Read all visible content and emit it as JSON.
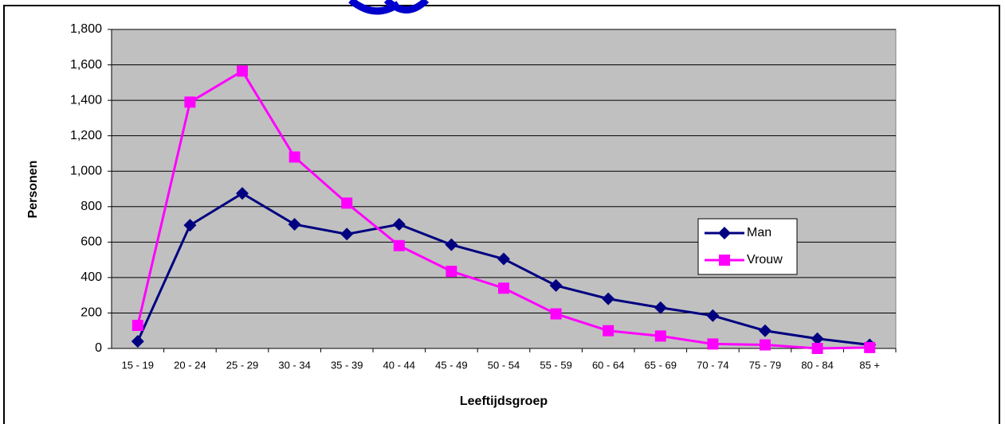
{
  "chart_data": {
    "type": "line",
    "x_label": "Leeftijdsgroep",
    "y_label": "Personen",
    "categories": [
      "15 - 19",
      "20 - 24",
      "25 - 29",
      "30 - 34",
      "35 - 39",
      "40 - 44",
      "45 - 49",
      "50 - 54",
      "55 - 59",
      "60 - 64",
      "65 - 69",
      "70 - 74",
      "75 - 79",
      "80 - 84",
      "85 +"
    ],
    "series": [
      {
        "name": "Man",
        "color": "#000080",
        "marker": "diamond",
        "values": [
          40,
          695,
          875,
          700,
          645,
          700,
          585,
          505,
          355,
          280,
          230,
          185,
          100,
          55,
          20
        ]
      },
      {
        "name": "Vrouw",
        "color": "#ff00ff",
        "marker": "square",
        "values": [
          130,
          1390,
          1565,
          1080,
          820,
          580,
          435,
          340,
          195,
          100,
          70,
          25,
          20,
          0,
          5
        ]
      }
    ],
    "ylim": [
      0,
      1800
    ],
    "yticks": [
      0,
      200,
      400,
      600,
      800,
      {
        "value": 1000,
        "label": "1,000"
      },
      {
        "value": 1200,
        "label": "1,200"
      },
      {
        "value": 1400,
        "label": "1,400"
      },
      {
        "value": 1600,
        "label": "1,600"
      },
      {
        "value": 1800,
        "label": "1,800"
      }
    ],
    "grid": true,
    "plot_background": "#c0c0c0",
    "legend": "right"
  }
}
